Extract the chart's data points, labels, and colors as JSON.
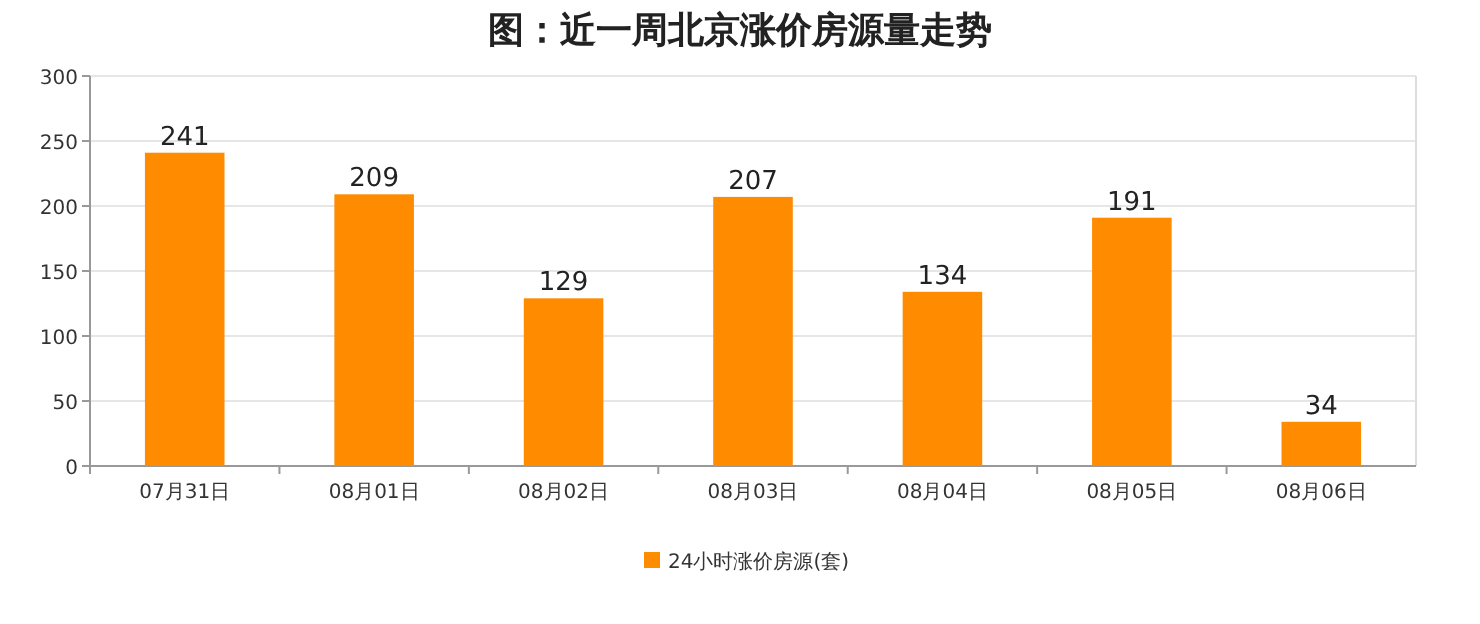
{
  "chart_data": {
    "type": "bar",
    "title": "图：近一周北京涨价房源量走势",
    "categories": [
      "07月31日",
      "08月01日",
      "08月02日",
      "08月03日",
      "08月04日",
      "08月05日",
      "08月06日"
    ],
    "series": [
      {
        "name": "24小时涨价房源(套)",
        "color": "#ff8c00",
        "values": [
          241,
          209,
          129,
          207,
          134,
          191,
          34
        ]
      }
    ],
    "ylim": [
      0,
      300
    ],
    "yticks": [
      0,
      50,
      100,
      150,
      200,
      250,
      300
    ],
    "grid": "y",
    "legend": "bottom",
    "data_labels": true
  }
}
